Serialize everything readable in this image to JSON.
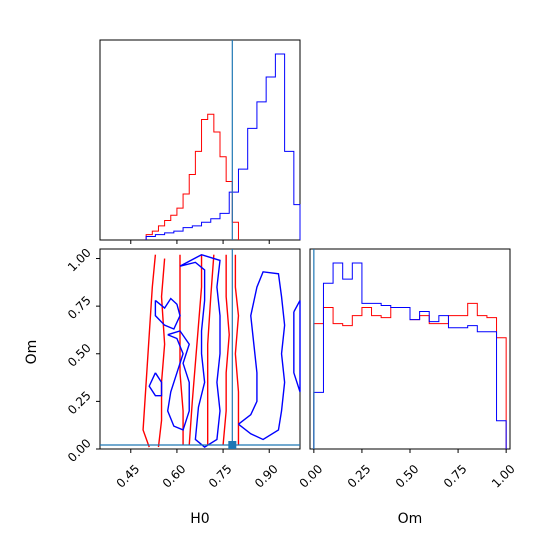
{
  "chart_data": {
    "type": "corner",
    "parameters": [
      "H0",
      "Om"
    ],
    "truth": {
      "H0": 0.78,
      "Om": 0.0
    },
    "colors": {
      "red": "#ff0000",
      "blue": "#0000ff",
      "truth": "#1f77b4"
    },
    "panels": [
      {
        "id": "hist-H0",
        "type": "step-histogram",
        "xlabel": "",
        "xlim": [
          0.35,
          1.0
        ],
        "series": [
          {
            "color": "red",
            "bin_edges": [
              0.5,
              0.52,
              0.54,
              0.56,
              0.58,
              0.6,
              0.62,
              0.64,
              0.66,
              0.68,
              0.7,
              0.72,
              0.74,
              0.76,
              0.78,
              0.8
            ],
            "values": [
              3,
              5,
              8,
              11,
              14,
              18,
              26,
              37,
              50,
              68,
              71,
              61,
              47,
              33,
              10
            ]
          },
          {
            "color": "blue",
            "bin_edges": [
              0.5,
              0.53,
              0.56,
              0.59,
              0.62,
              0.65,
              0.68,
              0.71,
              0.74,
              0.77,
              0.8,
              0.83,
              0.86,
              0.89,
              0.92,
              0.95,
              0.98,
              1.0
            ],
            "values": [
              2,
              3,
              4,
              5,
              7,
              8,
              10,
              12,
              15,
              27,
              40,
              63,
              78,
              92,
              105,
              50,
              20
            ]
          }
        ]
      },
      {
        "id": "joint-H0-Om",
        "type": "contour",
        "xlabel": "H0",
        "ylabel": "Om",
        "xlim": [
          0.35,
          1.0
        ],
        "ylim": [
          0.0,
          1.05
        ],
        "xticks": [
          "0.45",
          "0.60",
          "0.75",
          "0.90"
        ],
        "yticks": [
          "0.00",
          "0.25",
          "0.50",
          "0.75",
          "1.00"
        ],
        "series": [
          {
            "color": "red",
            "contours": [
              [
                [
                  0.53,
                  1.02
                ],
                [
                  0.52,
                  0.85
                ],
                [
                  0.51,
                  0.6
                ],
                [
                  0.5,
                  0.35
                ],
                [
                  0.49,
                  0.1
                ],
                [
                  0.51,
                  0.01
                ]
              ],
              [
                [
                  0.56,
                  1.0
                ],
                [
                  0.55,
                  0.8
                ],
                [
                  0.56,
                  0.55
                ],
                [
                  0.55,
                  0.35
                ],
                [
                  0.55,
                  0.15
                ],
                [
                  0.54,
                  0.01
                ]
              ],
              [
                [
                  0.61,
                  1.02
                ],
                [
                  0.61,
                  0.8
                ],
                [
                  0.61,
                  0.58
                ],
                [
                  0.61,
                  0.4
                ],
                [
                  0.62,
                  0.2
                ],
                [
                  0.62,
                  0.02
                ]
              ],
              [
                [
                  0.68,
                  1.02
                ],
                [
                  0.68,
                  0.85
                ],
                [
                  0.67,
                  0.65
                ],
                [
                  0.66,
                  0.45
                ],
                [
                  0.65,
                  0.25
                ],
                [
                  0.64,
                  0.02
                ]
              ],
              [
                [
                  0.72,
                  1.02
                ],
                [
                  0.71,
                  0.8
                ],
                [
                  0.7,
                  0.55
                ],
                [
                  0.7,
                  0.3
                ],
                [
                  0.7,
                  0.02
                ]
              ],
              [
                [
                  0.76,
                  1.02
                ],
                [
                  0.76,
                  0.8
                ],
                [
                  0.77,
                  0.6
                ],
                [
                  0.76,
                  0.4
                ],
                [
                  0.76,
                  0.2
                ],
                [
                  0.75,
                  0.02
                ]
              ],
              [
                [
                  0.79,
                  1.02
                ],
                [
                  0.79,
                  0.85
                ],
                [
                  0.8,
                  0.7
                ],
                [
                  0.79,
                  0.5
                ],
                [
                  0.8,
                  0.3
                ],
                [
                  0.8,
                  0.1
                ],
                [
                  0.8,
                  0.02
                ]
              ]
            ]
          },
          {
            "color": "blue",
            "contours": [
              [
                [
                  0.53,
                  0.78
                ],
                [
                  0.56,
                  0.74
                ],
                [
                  0.58,
                  0.79
                ],
                [
                  0.6,
                  0.76
                ],
                [
                  0.61,
                  0.7
                ],
                [
                  0.59,
                  0.63
                ],
                [
                  0.56,
                  0.65
                ],
                [
                  0.53,
                  0.7
                ],
                [
                  0.53,
                  0.78
                ]
              ],
              [
                [
                  0.53,
                  0.4
                ],
                [
                  0.55,
                  0.35
                ],
                [
                  0.55,
                  0.28
                ],
                [
                  0.53,
                  0.28
                ],
                [
                  0.51,
                  0.33
                ],
                [
                  0.53,
                  0.4
                ]
              ],
              [
                [
                  0.57,
                  0.6
                ],
                [
                  0.6,
                  0.58
                ],
                [
                  0.62,
                  0.5
                ],
                [
                  0.6,
                  0.4
                ],
                [
                  0.58,
                  0.3
                ],
                [
                  0.57,
                  0.2
                ],
                [
                  0.59,
                  0.12
                ],
                [
                  0.62,
                  0.1
                ],
                [
                  0.64,
                  0.2
                ],
                [
                  0.64,
                  0.35
                ],
                [
                  0.62,
                  0.45
                ],
                [
                  0.64,
                  0.55
                ],
                [
                  0.61,
                  0.62
                ],
                [
                  0.57,
                  0.6
                ]
              ],
              [
                [
                  0.61,
                  0.96
                ],
                [
                  0.66,
                  0.98
                ],
                [
                  0.69,
                  0.94
                ],
                [
                  0.69,
                  0.78
                ],
                [
                  0.68,
                  0.62
                ],
                [
                  0.68,
                  0.5
                ],
                [
                  0.69,
                  0.35
                ],
                [
                  0.67,
                  0.22
                ],
                [
                  0.66,
                  0.05
                ],
                [
                  0.69,
                  0.01
                ],
                [
                  0.73,
                  0.05
                ],
                [
                  0.74,
                  0.2
                ],
                [
                  0.73,
                  0.35
                ],
                [
                  0.74,
                  0.5
                ],
                [
                  0.74,
                  0.7
                ],
                [
                  0.73,
                  0.85
                ],
                [
                  0.74,
                  0.99
                ],
                [
                  0.68,
                  1.02
                ],
                [
                  0.61,
                  0.96
                ]
              ],
              [
                [
                  0.8,
                  0.13
                ],
                [
                  0.84,
                  0.18
                ],
                [
                  0.86,
                  0.25
                ],
                [
                  0.86,
                  0.4
                ],
                [
                  0.85,
                  0.55
                ],
                [
                  0.84,
                  0.7
                ],
                [
                  0.86,
                  0.85
                ],
                [
                  0.88,
                  0.93
                ],
                [
                  0.93,
                  0.92
                ],
                [
                  0.94,
                  0.8
                ],
                [
                  0.95,
                  0.65
                ],
                [
                  0.94,
                  0.5
                ],
                [
                  0.95,
                  0.35
                ],
                [
                  0.94,
                  0.2
                ],
                [
                  0.93,
                  0.1
                ],
                [
                  0.88,
                  0.05
                ],
                [
                  0.84,
                  0.08
                ],
                [
                  0.8,
                  0.13
                ]
              ],
              [
                [
                  0.98,
                  0.72
                ],
                [
                  1.0,
                  0.78
                ],
                [
                  1.0,
                  0.3
                ],
                [
                  0.98,
                  0.4
                ],
                [
                  0.98,
                  0.72
                ]
              ]
            ]
          }
        ]
      },
      {
        "id": "hist-Om",
        "type": "step-histogram",
        "xlabel": "Om",
        "xlim": [
          -0.02,
          1.02
        ],
        "xticks": [
          "0.00",
          "0.25",
          "0.50",
          "0.75",
          "1.00"
        ],
        "series": [
          {
            "color": "red",
            "bin_edges": [
              0.0,
              0.05,
              0.1,
              0.15,
              0.2,
              0.25,
              0.3,
              0.35,
              0.4,
              0.45,
              0.5,
              0.55,
              0.6,
              0.65,
              0.7,
              0.75,
              0.8,
              0.85,
              0.9,
              0.95,
              1.0
            ],
            "values": [
              62,
              70,
              62,
              61,
              66,
              70,
              66,
              65,
              70,
              70,
              64,
              66,
              62,
              62,
              66,
              66,
              72,
              66,
              65,
              55
            ]
          },
          {
            "color": "blue",
            "bin_edges": [
              0.0,
              0.05,
              0.1,
              0.15,
              0.2,
              0.25,
              0.3,
              0.35,
              0.4,
              0.45,
              0.5,
              0.55,
              0.6,
              0.65,
              0.7,
              0.75,
              0.8,
              0.85,
              0.9,
              0.95,
              1.0
            ],
            "values": [
              28,
              82,
              92,
              84,
              92,
              72,
              72,
              71,
              70,
              70,
              64,
              68,
              63,
              66,
              60,
              60,
              61,
              58,
              58,
              14
            ]
          }
        ]
      }
    ]
  }
}
